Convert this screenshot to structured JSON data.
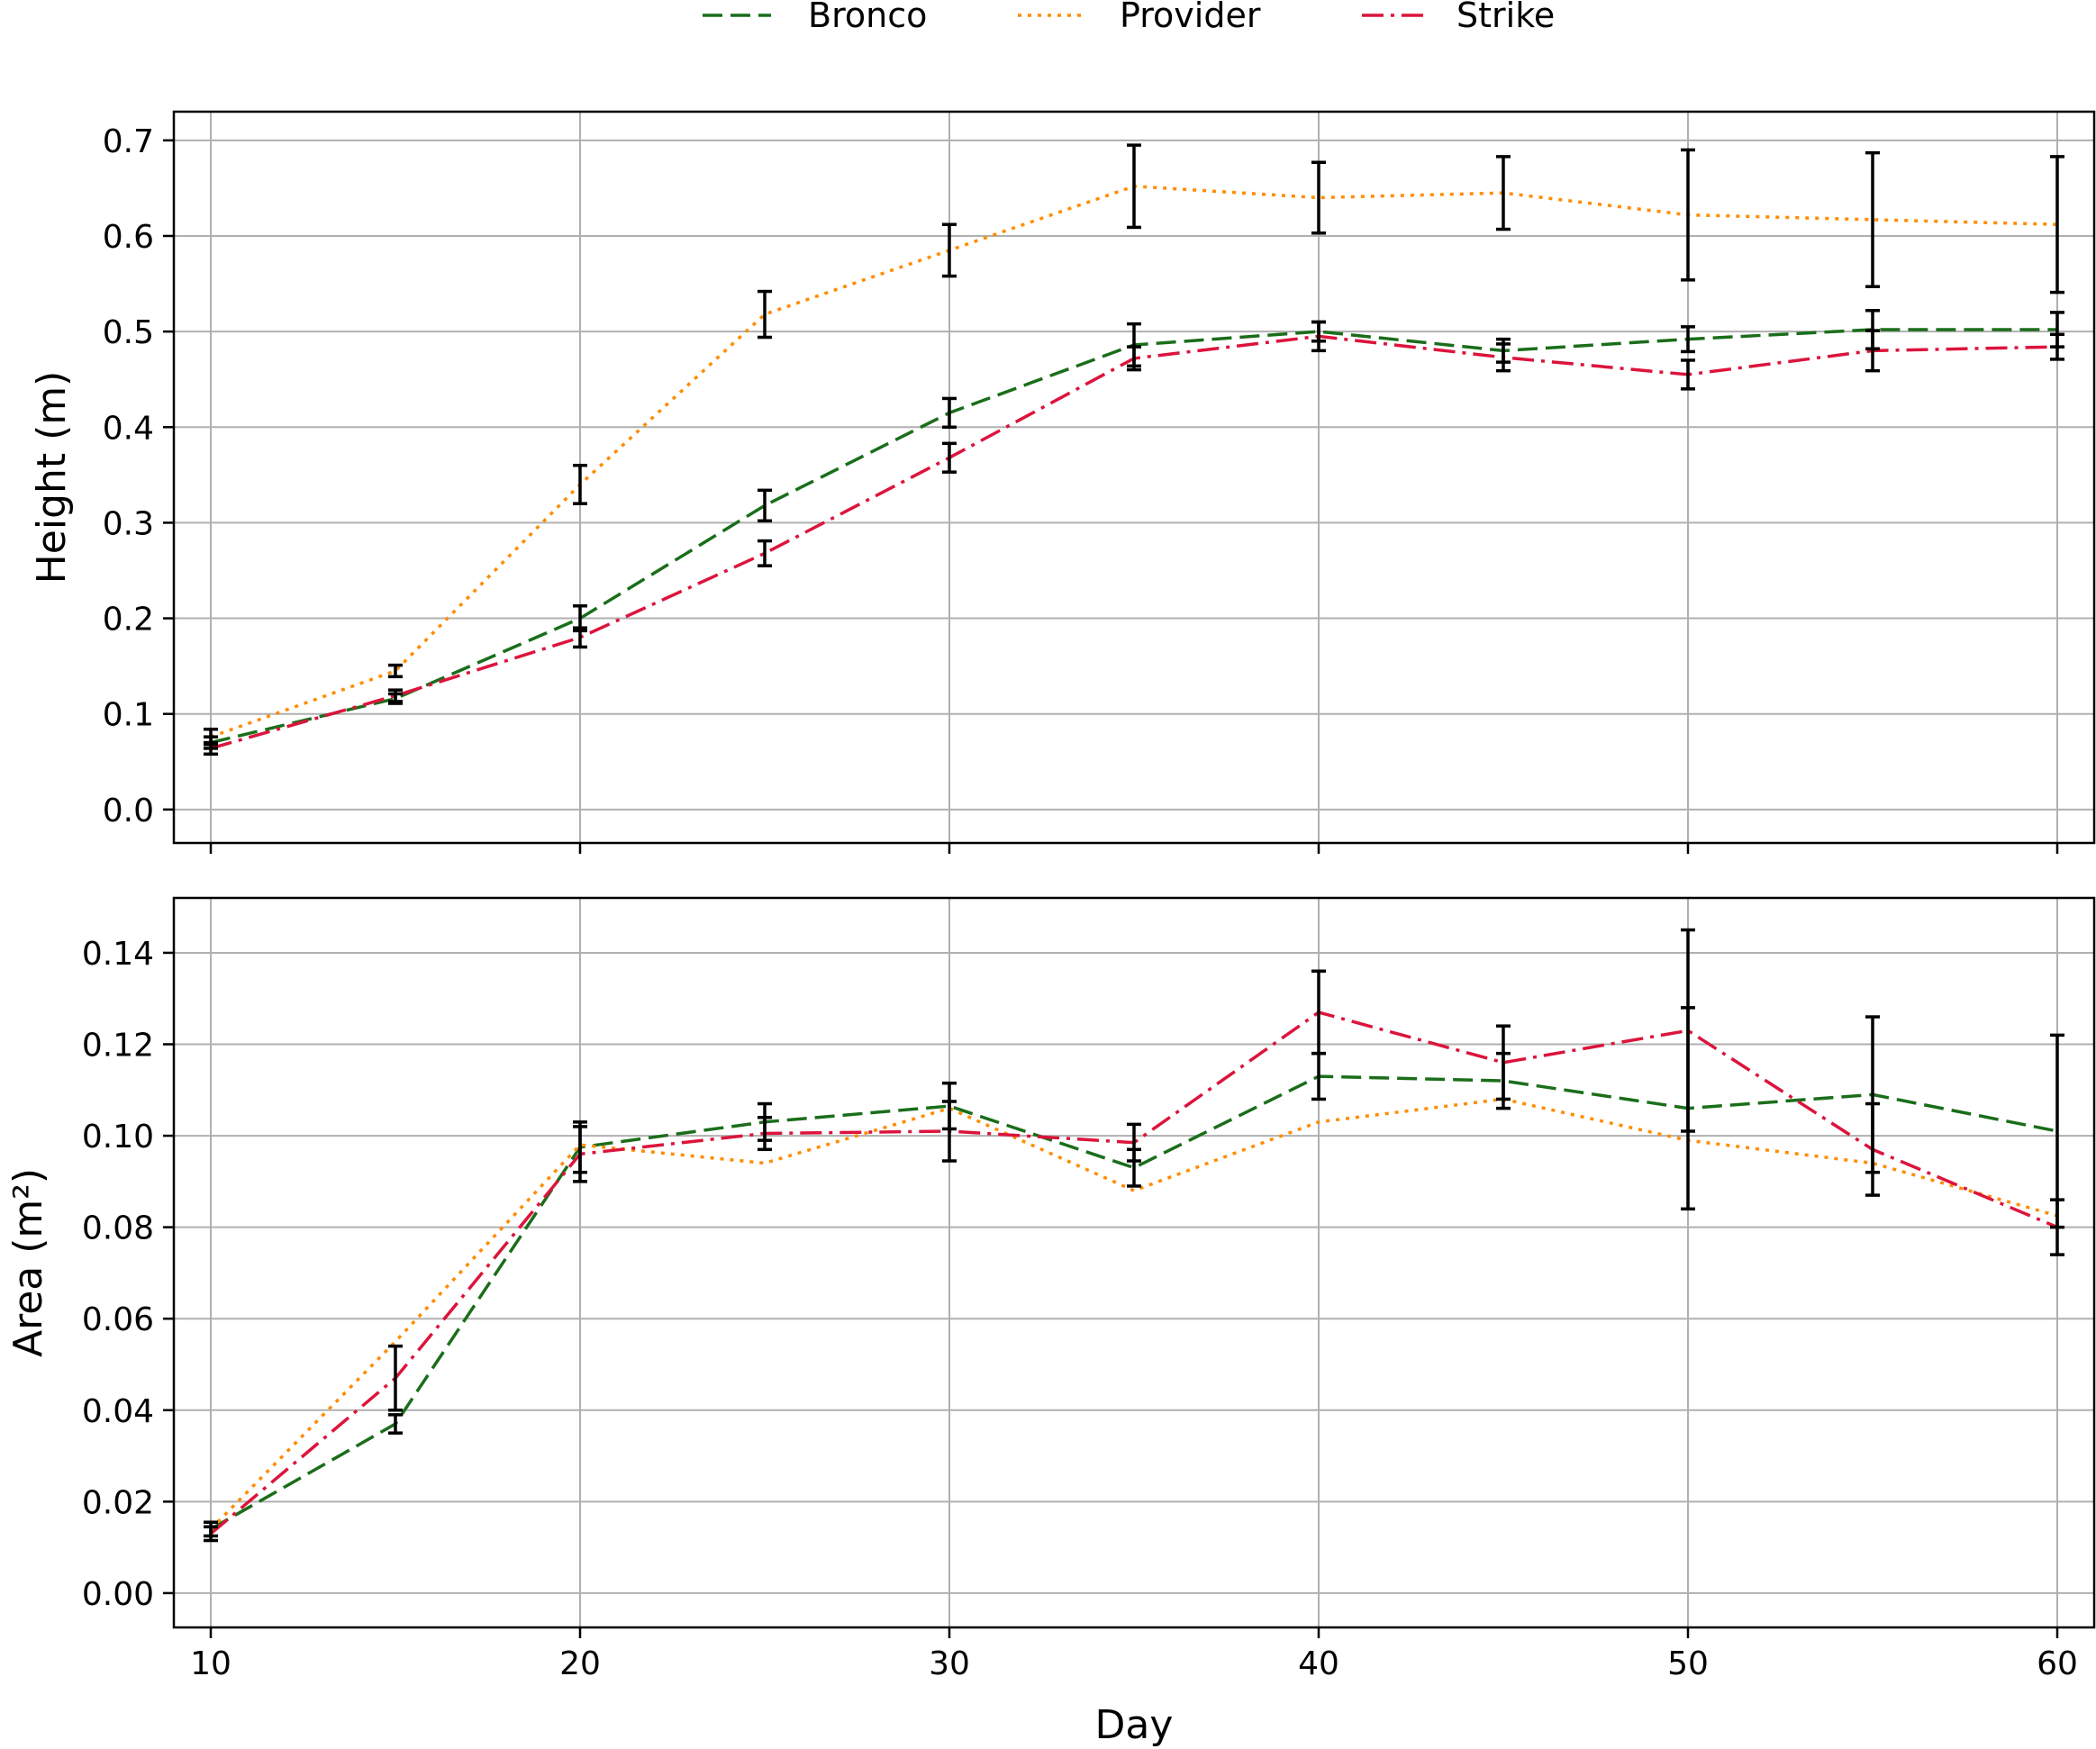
{
  "legend": {
    "placement": "top-center",
    "entries": [
      {
        "label": "Bronco",
        "color": "#1a6e1a",
        "dash": "dashed"
      },
      {
        "label": "Provider",
        "color": "#ff8c00",
        "dash": "dotted"
      },
      {
        "label": "Strike",
        "color": "#dc143c",
        "dash": "dashdot"
      }
    ]
  },
  "shared_x": {
    "label": "Day",
    "ticks": [
      "10",
      "20",
      "30",
      "40",
      "50",
      "60"
    ]
  },
  "chart_data": [
    {
      "type": "line",
      "ylabel": "Height (m)",
      "x": [
        10,
        15,
        20,
        25,
        30,
        35,
        40,
        45,
        50,
        55,
        60
      ],
      "xlim": [
        9,
        61
      ],
      "ylim": [
        -0.035,
        0.73
      ],
      "yticks": [
        "0.0",
        "0.1",
        "0.2",
        "0.3",
        "0.4",
        "0.5",
        "0.6",
        "0.7"
      ],
      "grid": true,
      "series": [
        {
          "name": "Bronco",
          "color": "#1a6e1a",
          "values": [
            0.07,
            0.116,
            0.2,
            0.318,
            0.415,
            0.486,
            0.5,
            0.48,
            0.492,
            0.502,
            0.502
          ],
          "err": [
            0.006,
            0.005,
            0.013,
            0.016,
            0.015,
            0.022,
            0.01,
            0.012,
            0.013,
            0.02,
            0.018
          ]
        },
        {
          "name": "Provider",
          "color": "#ff8c00",
          "values": [
            0.076,
            0.145,
            0.34,
            0.518,
            0.585,
            0.652,
            0.64,
            0.645,
            0.622,
            0.617,
            0.612
          ],
          "err": [
            0.008,
            0.006,
            0.02,
            0.024,
            0.027,
            0.043,
            0.037,
            0.038,
            0.068,
            0.07,
            0.071
          ]
        },
        {
          "name": "Strike",
          "color": "#dc143c",
          "values": [
            0.064,
            0.119,
            0.18,
            0.268,
            0.368,
            0.472,
            0.495,
            0.473,
            0.455,
            0.48,
            0.484
          ],
          "err": [
            0.006,
            0.006,
            0.01,
            0.013,
            0.015,
            0.012,
            0.015,
            0.014,
            0.015,
            0.021,
            0.013
          ]
        }
      ]
    },
    {
      "type": "line",
      "ylabel": "Area (m²)",
      "x": [
        10,
        15,
        20,
        25,
        30,
        35,
        40,
        45,
        50,
        55,
        60
      ],
      "xlim": [
        9,
        61
      ],
      "ylim": [
        -0.0075,
        0.152
      ],
      "yticks": [
        "0.00",
        "0.02",
        "0.04",
        "0.06",
        "0.08",
        "0.10",
        "0.12",
        "0.14"
      ],
      "grid": true,
      "series": [
        {
          "name": "Bronco",
          "color": "#1a6e1a",
          "values": [
            0.014,
            0.037,
            0.0975,
            0.103,
            0.1065,
            0.093,
            0.113,
            0.112,
            0.106,
            0.109,
            0.101
          ],
          "err": [
            0.0015,
            0.002,
            0.0055,
            0.004,
            0.005,
            0.004,
            0.005,
            0.006,
            0.022,
            0.017,
            0.021
          ]
        },
        {
          "name": "Provider",
          "color": "#ff8c00",
          "values": [
            0.014,
            0.055,
            0.098,
            0.094,
            0.106,
            0.088,
            0.103,
            0.108,
            0.099,
            0.094,
            0.0825
          ]
        },
        {
          "name": "Strike",
          "color": "#dc143c",
          "values": [
            0.013,
            0.047,
            0.096,
            0.1005,
            0.101,
            0.0985,
            0.127,
            0.116,
            0.123,
            0.097,
            0.08
          ],
          "err": [
            0.0015,
            0.007,
            0.006,
            0.0035,
            0.0065,
            0.004,
            0.009,
            0.008,
            0.022,
            0.01,
            0.006
          ]
        }
      ]
    }
  ]
}
